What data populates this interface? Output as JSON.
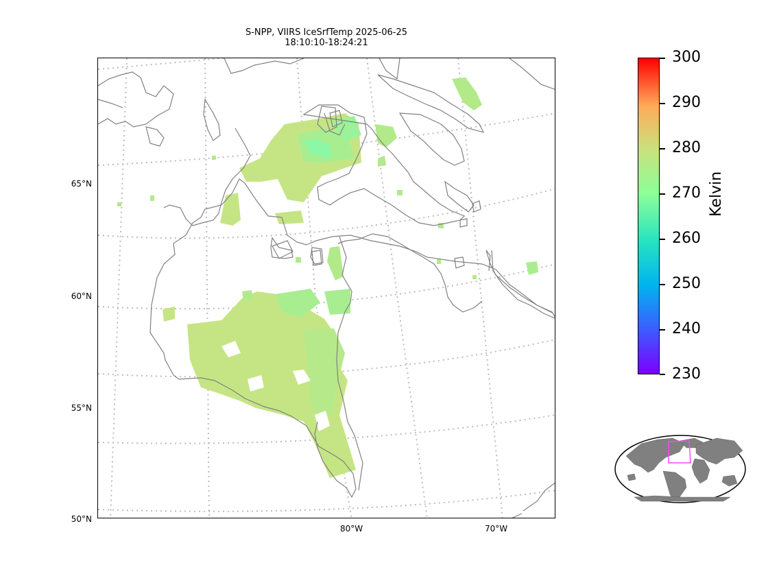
{
  "title": {
    "line1": "S-NPP, VIIRS IceSrfTemp 2025-06-25",
    "line2": "18:10:10-18:24:21"
  },
  "map": {
    "lat_labels": [
      "65°N",
      "60°N",
      "55°N",
      "50°N"
    ],
    "lon_labels": [
      "80°W",
      "70°W"
    ],
    "coastline_color": "#808080",
    "gridline_color": "#bbbbbb",
    "data_fill_colors": [
      "#c5e585",
      "#a8ee90",
      "#8cf7a4"
    ]
  },
  "colorbar": {
    "label": "Kelvin",
    "ticks": [
      "300",
      "290",
      "280",
      "270",
      "260",
      "250",
      "240",
      "230"
    ],
    "range_kelvin": [
      230,
      300
    ],
    "colormap": "rainbow"
  },
  "inset": {
    "extent_box_color": "#ff44ff",
    "land_color": "#808080"
  }
}
